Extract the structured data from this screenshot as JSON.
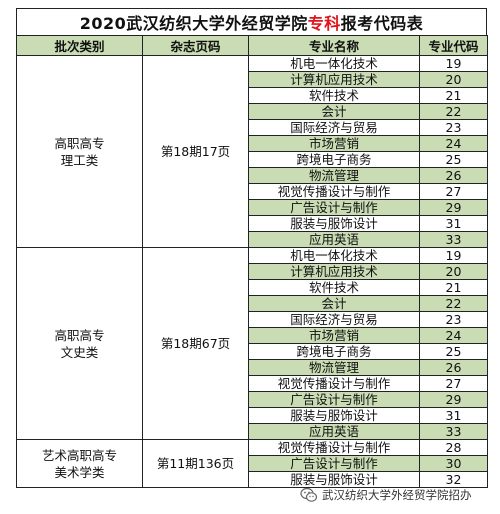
{
  "title": {
    "prefix": "2020武汉纺织大学外经贸学院",
    "highlight": "专科",
    "suffix": "报考代码表",
    "highlight_color": "#e0151b"
  },
  "columns": [
    "批次类别",
    "杂志页码",
    "专业名称",
    "专业代码"
  ],
  "groups": [
    {
      "category_line1": "高职高专",
      "category_line2": "理工类",
      "page": "第18期17页",
      "rows": [
        {
          "major": "机电一体化技术",
          "code": "19"
        },
        {
          "major": "计算机应用技术",
          "code": "20"
        },
        {
          "major": "软件技术",
          "code": "21"
        },
        {
          "major": "会计",
          "code": "22"
        },
        {
          "major": "国际经济与贸易",
          "code": "23"
        },
        {
          "major": "市场营销",
          "code": "24"
        },
        {
          "major": "跨境电子商务",
          "code": "25"
        },
        {
          "major": "物流管理",
          "code": "26"
        },
        {
          "major": "视觉传播设计与制作",
          "code": "27"
        },
        {
          "major": "广告设计与制作",
          "code": "29"
        },
        {
          "major": "服装与服饰设计",
          "code": "31"
        },
        {
          "major": "应用英语",
          "code": "33"
        }
      ]
    },
    {
      "category_line1": "高职高专",
      "category_line2": "文史类",
      "page": "第18期67页",
      "rows": [
        {
          "major": "机电一体化技术",
          "code": "19"
        },
        {
          "major": "计算机应用技术",
          "code": "20"
        },
        {
          "major": "软件技术",
          "code": "21"
        },
        {
          "major": "会计",
          "code": "22"
        },
        {
          "major": "国际经济与贸易",
          "code": "23"
        },
        {
          "major": "市场营销",
          "code": "24"
        },
        {
          "major": "跨境电子商务",
          "code": "25"
        },
        {
          "major": "物流管理",
          "code": "26"
        },
        {
          "major": "视觉传播设计与制作",
          "code": "27"
        },
        {
          "major": "广告设计与制作",
          "code": "29"
        },
        {
          "major": "服装与服饰设计",
          "code": "31"
        },
        {
          "major": "应用英语",
          "code": "33"
        }
      ]
    },
    {
      "category_line1": "艺术高职高专",
      "category_line2": "美术学类",
      "page": "第11期136页",
      "rows": [
        {
          "major": "视觉传播设计与制作",
          "code": "28"
        },
        {
          "major": "广告设计与制作",
          "code": "30"
        },
        {
          "major": "服装与服饰设计",
          "code": "32"
        }
      ]
    }
  ],
  "footer": {
    "icon": "wechat-icon",
    "text": "武汉纺织大学外经贸学院招办"
  },
  "colors": {
    "header_bg": "#c9dcb3",
    "stripe_bg": "#c9dcb3",
    "border": "#222222"
  }
}
